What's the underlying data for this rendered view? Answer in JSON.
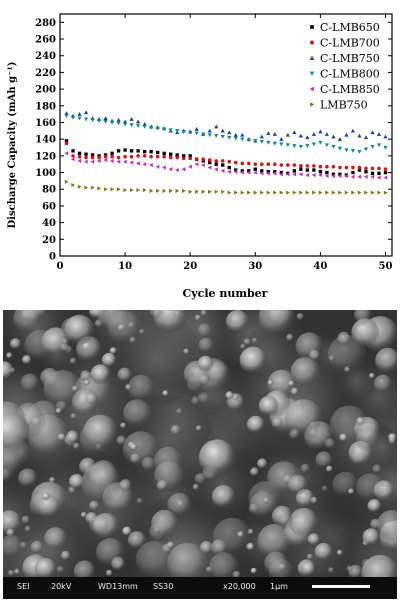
{
  "chart_data": {
    "type": "scatter",
    "xlabel": "Cycle number",
    "ylabel": "Discharge Capacity (mAh g⁻¹)",
    "xlim": [
      0,
      51
    ],
    "ylim": [
      0,
      290
    ],
    "xticks": [
      0,
      10,
      20,
      30,
      40,
      50
    ],
    "yticks": [
      0,
      20,
      40,
      60,
      80,
      100,
      120,
      140,
      160,
      180,
      200,
      220,
      240,
      260,
      280
    ],
    "legend_position": "top-right",
    "series": [
      {
        "name": "C-LMB650",
        "marker": "square",
        "color": "#000000",
        "x": [
          1,
          2,
          3,
          4,
          5,
          6,
          7,
          8,
          9,
          10,
          11,
          12,
          13,
          14,
          15,
          16,
          17,
          18,
          19,
          20,
          21,
          22,
          23,
          24,
          25,
          26,
          27,
          28,
          29,
          30,
          31,
          32,
          33,
          34,
          35,
          36,
          37,
          38,
          39,
          40,
          41,
          42,
          43,
          44,
          45,
          46,
          47,
          48,
          49,
          50
        ],
        "y": [
          138,
          126,
          123,
          122,
          121,
          120,
          121,
          123,
          126,
          127,
          126,
          126,
          125,
          125,
          124,
          123,
          122,
          121,
          120,
          120,
          116,
          114,
          112,
          110,
          109,
          106,
          103,
          102,
          102,
          104,
          102,
          101,
          101,
          100,
          99,
          102,
          104,
          103,
          103,
          101,
          100,
          98,
          98,
          97,
          100,
          103,
          101,
          99,
          99,
          100
        ]
      },
      {
        "name": "C-LMB700",
        "marker": "circle",
        "color": "#e01010",
        "x": [
          1,
          2,
          3,
          4,
          5,
          6,
          7,
          8,
          9,
          10,
          11,
          12,
          13,
          14,
          15,
          16,
          17,
          18,
          19,
          20,
          21,
          22,
          23,
          24,
          25,
          26,
          27,
          28,
          29,
          30,
          31,
          32,
          33,
          34,
          35,
          36,
          37,
          38,
          39,
          40,
          41,
          42,
          43,
          44,
          45,
          46,
          47,
          48,
          49,
          50
        ],
        "y": [
          135,
          120,
          119,
          118,
          118,
          118,
          119,
          119,
          118,
          119,
          119,
          120,
          120,
          119,
          119,
          119,
          118,
          118,
          117,
          117,
          116,
          116,
          115,
          114,
          114,
          113,
          112,
          111,
          111,
          110,
          110,
          110,
          110,
          109,
          109,
          109,
          108,
          108,
          108,
          107,
          107,
          107,
          106,
          106,
          106,
          106,
          105,
          105,
          105,
          104
        ]
      },
      {
        "name": "C-LMB750",
        "marker": "triangle-up",
        "color": "#1a3fa0",
        "x": [
          1,
          2,
          3,
          4,
          5,
          6,
          7,
          8,
          9,
          10,
          11,
          12,
          13,
          14,
          15,
          16,
          17,
          18,
          19,
          20,
          21,
          22,
          23,
          24,
          25,
          26,
          27,
          28,
          29,
          30,
          31,
          32,
          33,
          34,
          35,
          36,
          37,
          38,
          39,
          40,
          41,
          42,
          43,
          44,
          45,
          46,
          47,
          48,
          49,
          50
        ],
        "y": [
          171,
          168,
          170,
          172,
          165,
          164,
          165,
          162,
          163,
          161,
          164,
          161,
          158,
          155,
          154,
          153,
          150,
          148,
          150,
          149,
          152,
          146,
          150,
          155,
          150,
          148,
          145,
          145,
          140,
          138,
          143,
          147,
          146,
          140,
          145,
          148,
          144,
          142,
          146,
          149,
          146,
          143,
          140,
          145,
          150,
          144,
          142,
          148,
          146,
          143
        ]
      },
      {
        "name": "C-LMB800",
        "marker": "triangle-down",
        "color": "#0f8a8a",
        "x": [
          1,
          2,
          3,
          4,
          5,
          6,
          7,
          8,
          9,
          10,
          11,
          12,
          13,
          14,
          15,
          16,
          17,
          18,
          19,
          20,
          21,
          22,
          23,
          24,
          25,
          26,
          27,
          28,
          29,
          30,
          31,
          32,
          33,
          34,
          35,
          36,
          37,
          38,
          39,
          40,
          41,
          42,
          43,
          44,
          45,
          46,
          47,
          48,
          49,
          50
        ],
        "y": [
          168,
          166,
          165,
          164,
          163,
          162,
          161,
          160,
          159,
          158,
          157,
          156,
          155,
          154,
          153,
          152,
          151,
          150,
          149,
          148,
          147,
          146,
          145,
          144,
          143,
          142,
          141,
          140,
          139,
          138,
          137,
          136,
          135,
          134,
          133,
          132,
          131,
          132,
          134,
          136,
          133,
          131,
          129,
          127,
          126,
          125,
          128,
          131,
          133,
          130
        ]
      },
      {
        "name": "C-LMB850",
        "marker": "triangle-left",
        "color": "#c030c0",
        "x": [
          1,
          2,
          3,
          4,
          5,
          6,
          7,
          8,
          9,
          10,
          11,
          12,
          13,
          14,
          15,
          16,
          17,
          18,
          19,
          20,
          21,
          22,
          23,
          24,
          25,
          26,
          27,
          28,
          29,
          30,
          31,
          32,
          33,
          34,
          35,
          36,
          37,
          38,
          39,
          40,
          41,
          42,
          43,
          44,
          45,
          46,
          47,
          48,
          49,
          50
        ],
        "y": [
          123,
          116,
          114,
          113,
          113,
          114,
          115,
          114,
          113,
          113,
          112,
          111,
          110,
          109,
          107,
          106,
          104,
          103,
          104,
          107,
          110,
          109,
          106,
          104,
          102,
          101,
          101,
          100,
          100,
          100,
          99,
          99,
          99,
          98,
          98,
          98,
          98,
          97,
          97,
          97,
          96,
          96,
          96,
          96,
          95,
          95,
          95,
          95,
          94,
          94
        ]
      },
      {
        "name": "LMB750",
        "marker": "triangle-right",
        "color": "#7a7a10",
        "x": [
          1,
          2,
          3,
          4,
          5,
          6,
          7,
          8,
          9,
          10,
          11,
          12,
          13,
          14,
          15,
          16,
          17,
          18,
          19,
          20,
          21,
          22,
          23,
          24,
          25,
          26,
          27,
          28,
          29,
          30,
          31,
          32,
          33,
          34,
          35,
          36,
          37,
          38,
          39,
          40,
          41,
          42,
          43,
          44,
          45,
          46,
          47,
          48,
          49,
          50
        ],
        "y": [
          89,
          85,
          83,
          82,
          82,
          81,
          80,
          80,
          80,
          79,
          79,
          79,
          79,
          78,
          78,
          78,
          78,
          78,
          78,
          77,
          77,
          77,
          77,
          77,
          77,
          76,
          76,
          76,
          76,
          76,
          76,
          76,
          76,
          76,
          76,
          76,
          76,
          76,
          76,
          76,
          76,
          76,
          76,
          76,
          76,
          76,
          76,
          76,
          76,
          76
        ]
      }
    ]
  },
  "sem_image": {
    "labels": {
      "detector": "SEI",
      "voltage": "20kV",
      "working_distance": "WD13mm",
      "spot": "SS30",
      "magnification": "x20,000",
      "scale": "1μm"
    }
  }
}
